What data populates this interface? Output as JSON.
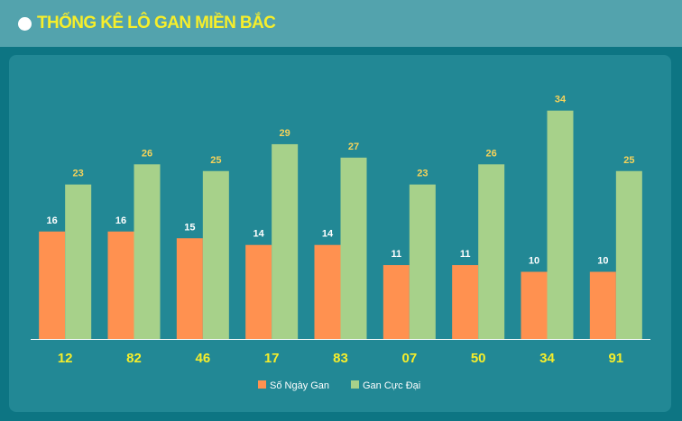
{
  "header": {
    "title": "THỐNG KÊ LÔ GAN MIỀN BẮC"
  },
  "colors": {
    "header_bg": "#53a3ad",
    "page_bg": "#0d7583",
    "panel_bg": "#228895",
    "title": "#f6ee2b",
    "series1": "#ff9150",
    "series2": "#a7d18a",
    "label_series1": "#ffffff",
    "label_series2": "#f6d35a",
    "category_label": "#f6ee2b",
    "legend_text": "#ffffff"
  },
  "chart_data": {
    "type": "bar",
    "categories": [
      "12",
      "82",
      "46",
      "17",
      "83",
      "07",
      "50",
      "34",
      "91"
    ],
    "series": [
      {
        "name": "Số Ngày Gan",
        "values": [
          16,
          16,
          15,
          14,
          14,
          11,
          11,
          10,
          10
        ]
      },
      {
        "name": "Gan Cực Đại",
        "values": [
          23,
          26,
          25,
          29,
          27,
          23,
          26,
          34,
          25
        ]
      }
    ],
    "ylim": [
      0,
      34
    ],
    "grid": false,
    "legend_position": "bottom-center",
    "data_labels": true
  }
}
